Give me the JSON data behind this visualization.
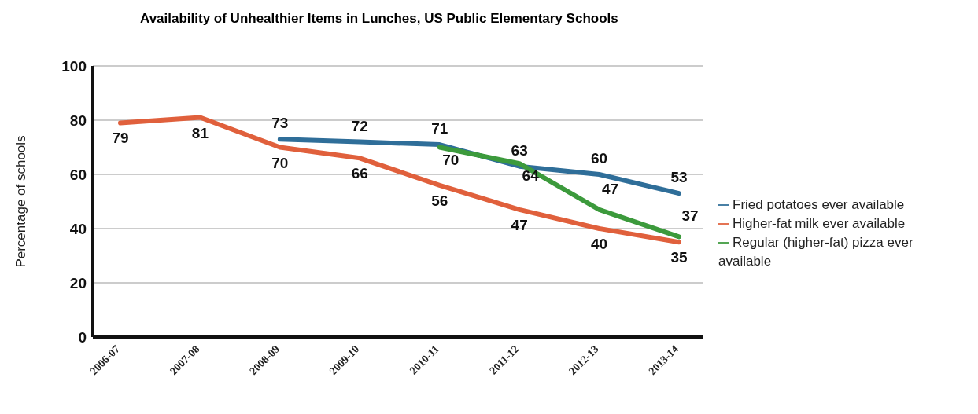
{
  "chart_data": {
    "type": "line",
    "title": "Availability of Unhealthier Items in Lunches, US Public Elementary Schools",
    "ylabel": "Percentage of schools",
    "categories": [
      "2006-07",
      "2007-08",
      "2008-09",
      "2009-10",
      "2010-11",
      "2011-12",
      "2012-13",
      "2013-14"
    ],
    "series": [
      {
        "name": "Fried potatoes ever available",
        "color": "#2f6e99",
        "values": [
          null,
          null,
          73,
          72,
          71,
          63,
          60,
          53
        ]
      },
      {
        "name": "Regular (higher-fat) pizza ever available",
        "color": "#3c9a3c",
        "values": [
          null,
          null,
          null,
          null,
          70,
          64,
          47,
          37
        ]
      },
      {
        "name": "Higher-fat milk ever available",
        "color": "#e0603c",
        "values": [
          79,
          81,
          70,
          66,
          56,
          47,
          40,
          35
        ]
      }
    ],
    "ylim": [
      0,
      100
    ],
    "yticks": [
      0,
      20,
      40,
      60,
      80,
      100
    ],
    "grid": "y",
    "legend": "right",
    "data_labels": true,
    "marker": "none",
    "line_style": "solid"
  }
}
